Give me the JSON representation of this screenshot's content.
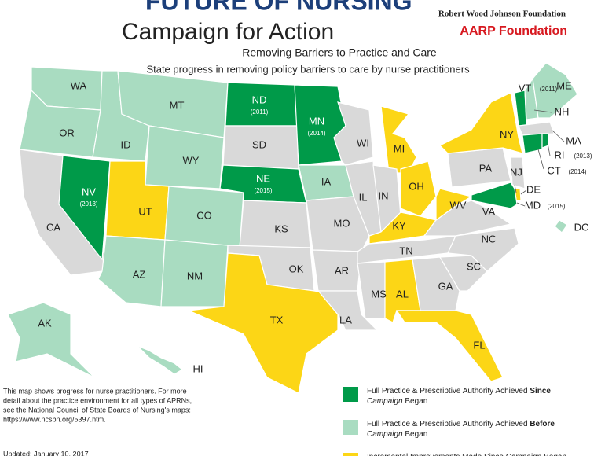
{
  "header": {
    "title": "FUTURE OF NURSING",
    "campaign": "Campaign for Action",
    "sponsor1": "Robert Wood Johnson Foundation",
    "sponsor2": "AARP Foundation",
    "subtitle": "Removing Barriers to Practice and Care",
    "description": "State progress in removing policy barriers to care by nurse practitioners"
  },
  "no_status_color": "#d9d9d9",
  "legend": [
    {
      "color": "#009a49",
      "lines": [
        [
          {
            "t": "Full Practice & Prescriptive Authority Achieved "
          },
          {
            "t": "Since",
            "b": true
          }
        ],
        [
          {
            "t": "Campaign",
            "i": true
          },
          {
            "t": " Began"
          }
        ]
      ]
    },
    {
      "color": "#a9dcc1",
      "lines": [
        [
          {
            "t": "Full Practice & Prescriptive Authority Achieved "
          },
          {
            "t": "Before",
            "b": true
          }
        ],
        [
          {
            "t": "Campaign",
            "i": true
          },
          {
            "t": " Began"
          }
        ]
      ]
    },
    {
      "color": "#fcd616",
      "lines": [
        [
          {
            "t": "Incremental Improvements Made Since Campaign Began"
          }
        ]
      ]
    }
  ],
  "states": [
    {
      "abbr": "WA",
      "status": 1
    },
    {
      "abbr": "OR",
      "status": 1
    },
    {
      "abbr": "CA",
      "status": null
    },
    {
      "abbr": "NV",
      "status": 0,
      "year": "(2013)"
    },
    {
      "abbr": "ID",
      "status": 1
    },
    {
      "abbr": "MT",
      "status": 1
    },
    {
      "abbr": "WY",
      "status": 1
    },
    {
      "abbr": "UT",
      "status": 2
    },
    {
      "abbr": "CO",
      "status": 1
    },
    {
      "abbr": "AZ",
      "status": 1
    },
    {
      "abbr": "NM",
      "status": 1
    },
    {
      "abbr": "ND",
      "status": 0,
      "year": "(2011)"
    },
    {
      "abbr": "SD",
      "status": null
    },
    {
      "abbr": "NE",
      "status": 0,
      "year": "(2015)"
    },
    {
      "abbr": "KS",
      "status": null
    },
    {
      "abbr": "OK",
      "status": null
    },
    {
      "abbr": "TX",
      "status": 2
    },
    {
      "abbr": "MN",
      "status": 0,
      "year": "(2014)"
    },
    {
      "abbr": "IA",
      "status": 1
    },
    {
      "abbr": "MO",
      "status": null
    },
    {
      "abbr": "AR",
      "status": null
    },
    {
      "abbr": "LA",
      "status": null
    },
    {
      "abbr": "WI",
      "status": null
    },
    {
      "abbr": "IL",
      "status": null
    },
    {
      "abbr": "MI",
      "status": 2
    },
    {
      "abbr": "IN",
      "status": null
    },
    {
      "abbr": "OH",
      "status": 2
    },
    {
      "abbr": "KY",
      "status": 2
    },
    {
      "abbr": "TN",
      "status": null
    },
    {
      "abbr": "MS",
      "status": null
    },
    {
      "abbr": "AL",
      "status": 2
    },
    {
      "abbr": "GA",
      "status": null
    },
    {
      "abbr": "FL",
      "status": 2
    },
    {
      "abbr": "SC",
      "status": null
    },
    {
      "abbr": "NC",
      "status": null
    },
    {
      "abbr": "VA",
      "status": null
    },
    {
      "abbr": "WV",
      "status": 2
    },
    {
      "abbr": "PA",
      "status": null
    },
    {
      "abbr": "NY",
      "status": 2
    },
    {
      "abbr": "NJ",
      "status": null
    },
    {
      "abbr": "DE",
      "status": 2
    },
    {
      "abbr": "MD",
      "status": 0,
      "year": "(2015)"
    },
    {
      "abbr": "VT",
      "status": 0,
      "year": "(2011)"
    },
    {
      "abbr": "NH",
      "status": 1
    },
    {
      "abbr": "ME",
      "status": 1
    },
    {
      "abbr": "MA",
      "status": null
    },
    {
      "abbr": "CT",
      "status": 0,
      "year": "(2014)"
    },
    {
      "abbr": "RI",
      "status": 0,
      "year": "(2013)"
    },
    {
      "abbr": "DC",
      "status": 1
    },
    {
      "abbr": "AK",
      "status": 1
    },
    {
      "abbr": "HI",
      "status": 1
    }
  ],
  "note": {
    "lines": [
      "This map shows progress for nurse practitioners. For more",
      "detail about the practice environment for all types of APRNs,",
      "see the National Council of State Boards of Nursing's maps:",
      "https://www.ncsbn.org/5397.htm."
    ],
    "updated": "Updated: January 10, 2017"
  }
}
